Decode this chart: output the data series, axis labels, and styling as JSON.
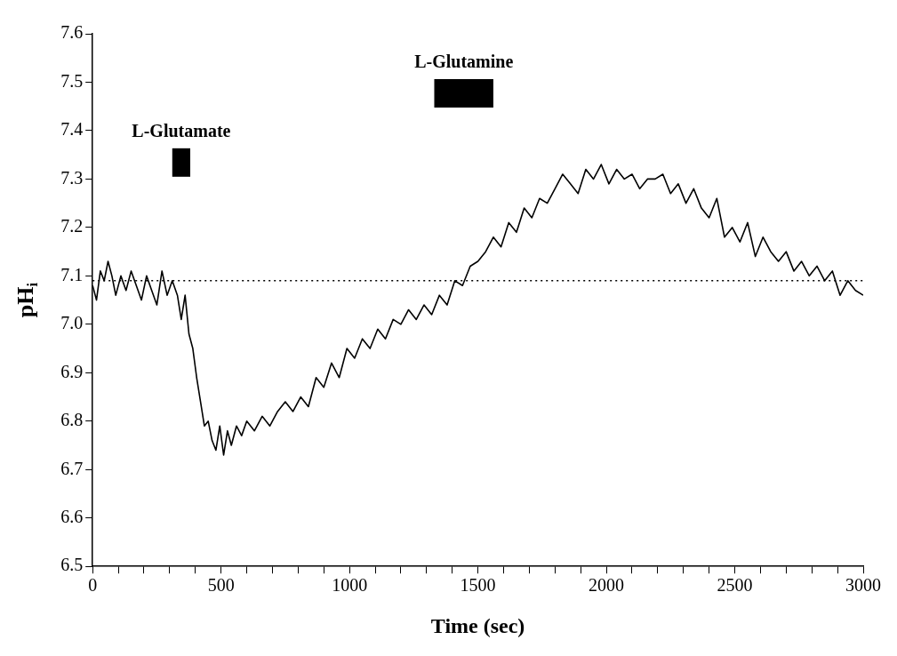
{
  "chart_data": {
    "type": "line",
    "xlabel": "Time (sec)",
    "ylabel": "pH$_{i}$",
    "x": [
      0,
      15,
      30,
      45,
      60,
      75,
      90,
      110,
      130,
      150,
      170,
      190,
      210,
      230,
      250,
      270,
      290,
      310,
      330,
      345,
      360,
      375,
      390,
      405,
      420,
      435,
      450,
      465,
      480,
      495,
      510,
      525,
      540,
      560,
      580,
      600,
      630,
      660,
      690,
      720,
      750,
      780,
      810,
      840,
      870,
      900,
      930,
      960,
      990,
      1020,
      1050,
      1080,
      1110,
      1140,
      1170,
      1200,
      1230,
      1260,
      1290,
      1320,
      1350,
      1380,
      1410,
      1440,
      1470,
      1500,
      1530,
      1560,
      1590,
      1620,
      1650,
      1680,
      1710,
      1740,
      1770,
      1800,
      1830,
      1860,
      1890,
      1920,
      1950,
      1980,
      2010,
      2040,
      2070,
      2100,
      2130,
      2160,
      2190,
      2220,
      2250,
      2280,
      2310,
      2340,
      2370,
      2400,
      2430,
      2460,
      2490,
      2520,
      2550,
      2580,
      2610,
      2640,
      2670,
      2700,
      2730,
      2760,
      2790,
      2820,
      2850,
      2880,
      2910,
      2940,
      2970,
      3000
    ],
    "series": [
      {
        "color": "#000000",
        "values": [
          7.08,
          7.05,
          7.11,
          7.09,
          7.13,
          7.1,
          7.06,
          7.1,
          7.07,
          7.11,
          7.08,
          7.05,
          7.1,
          7.07,
          7.04,
          7.11,
          7.06,
          7.09,
          7.06,
          7.01,
          7.06,
          6.98,
          6.95,
          6.89,
          6.84,
          6.79,
          6.8,
          6.76,
          6.74,
          6.79,
          6.73,
          6.78,
          6.75,
          6.79,
          6.77,
          6.8,
          6.78,
          6.81,
          6.79,
          6.82,
          6.84,
          6.82,
          6.85,
          6.83,
          6.89,
          6.87,
          6.92,
          6.89,
          6.95,
          6.93,
          6.97,
          6.95,
          6.99,
          6.97,
          7.01,
          7.0,
          7.03,
          7.01,
          7.04,
          7.02,
          7.06,
          7.04,
          7.09,
          7.08,
          7.12,
          7.13,
          7.15,
          7.18,
          7.16,
          7.21,
          7.19,
          7.24,
          7.22,
          7.26,
          7.25,
          7.28,
          7.31,
          7.29,
          7.27,
          7.32,
          7.3,
          7.33,
          7.29,
          7.32,
          7.3,
          7.31,
          7.28,
          7.3,
          7.3,
          7.31,
          7.27,
          7.29,
          7.25,
          7.28,
          7.24,
          7.22,
          7.26,
          7.18,
          7.2,
          7.17,
          7.21,
          7.14,
          7.18,
          7.15,
          7.13,
          7.15,
          7.11,
          7.13,
          7.1,
          7.12,
          7.09,
          7.11,
          7.06,
          7.09,
          7.07,
          7.06
        ]
      }
    ],
    "xlim": [
      0,
      3000
    ],
    "xticks": [
      0,
      {
        "value": 100,
        "label": null
      },
      {
        "value": 200,
        "label": null
      },
      {
        "value": 300,
        "label": null
      },
      {
        "value": 400,
        "label": null
      },
      500,
      {
        "value": 600,
        "label": null
      },
      {
        "value": 700,
        "label": null
      },
      {
        "value": 800,
        "label": null
      },
      {
        "value": 900,
        "label": null
      },
      1000,
      {
        "value": 1100,
        "label": null
      },
      {
        "value": 1200,
        "label": null
      },
      {
        "value": 1300,
        "label": null
      },
      {
        "value": 1400,
        "label": null
      },
      1500,
      {
        "value": 1600,
        "label": null
      },
      {
        "value": 1700,
        "label": null
      },
      {
        "value": 1800,
        "label": null
      },
      {
        "value": 1900,
        "label": null
      },
      2000,
      {
        "value": 2100,
        "label": null
      },
      {
        "value": 2200,
        "label": null
      },
      {
        "value": 2300,
        "label": null
      },
      {
        "value": 2400,
        "label": null
      },
      2500,
      {
        "value": 2600,
        "label": null
      },
      {
        "value": 2700,
        "label": null
      },
      {
        "value": 2800,
        "label": null
      },
      {
        "value": 2900,
        "label": null
      },
      3000
    ],
    "ylim": [
      6.5,
      7.6
    ],
    "yticks": [
      6.5,
      6.6,
      6.7,
      6.8,
      6.9,
      {
        "value": 7,
        "label": "7.0"
      },
      7.1,
      7.2,
      7.3,
      7.4,
      7.5,
      7.6
    ],
    "ref_lines": [
      {
        "axis": "y",
        "value": 7.09,
        "line_style": "dotted",
        "color": "#000000"
      }
    ],
    "bands": [
      {
        "axis": "x",
        "from": 310,
        "to": 380,
        "label": "L-Glutamate",
        "color": "#000000"
      },
      {
        "axis": "x",
        "from": 1330,
        "to": 1560,
        "label": "L-Glutamine",
        "color": "#000000"
      }
    ],
    "grid": false,
    "legend": false,
    "marker": "none",
    "line_style": "solid"
  }
}
